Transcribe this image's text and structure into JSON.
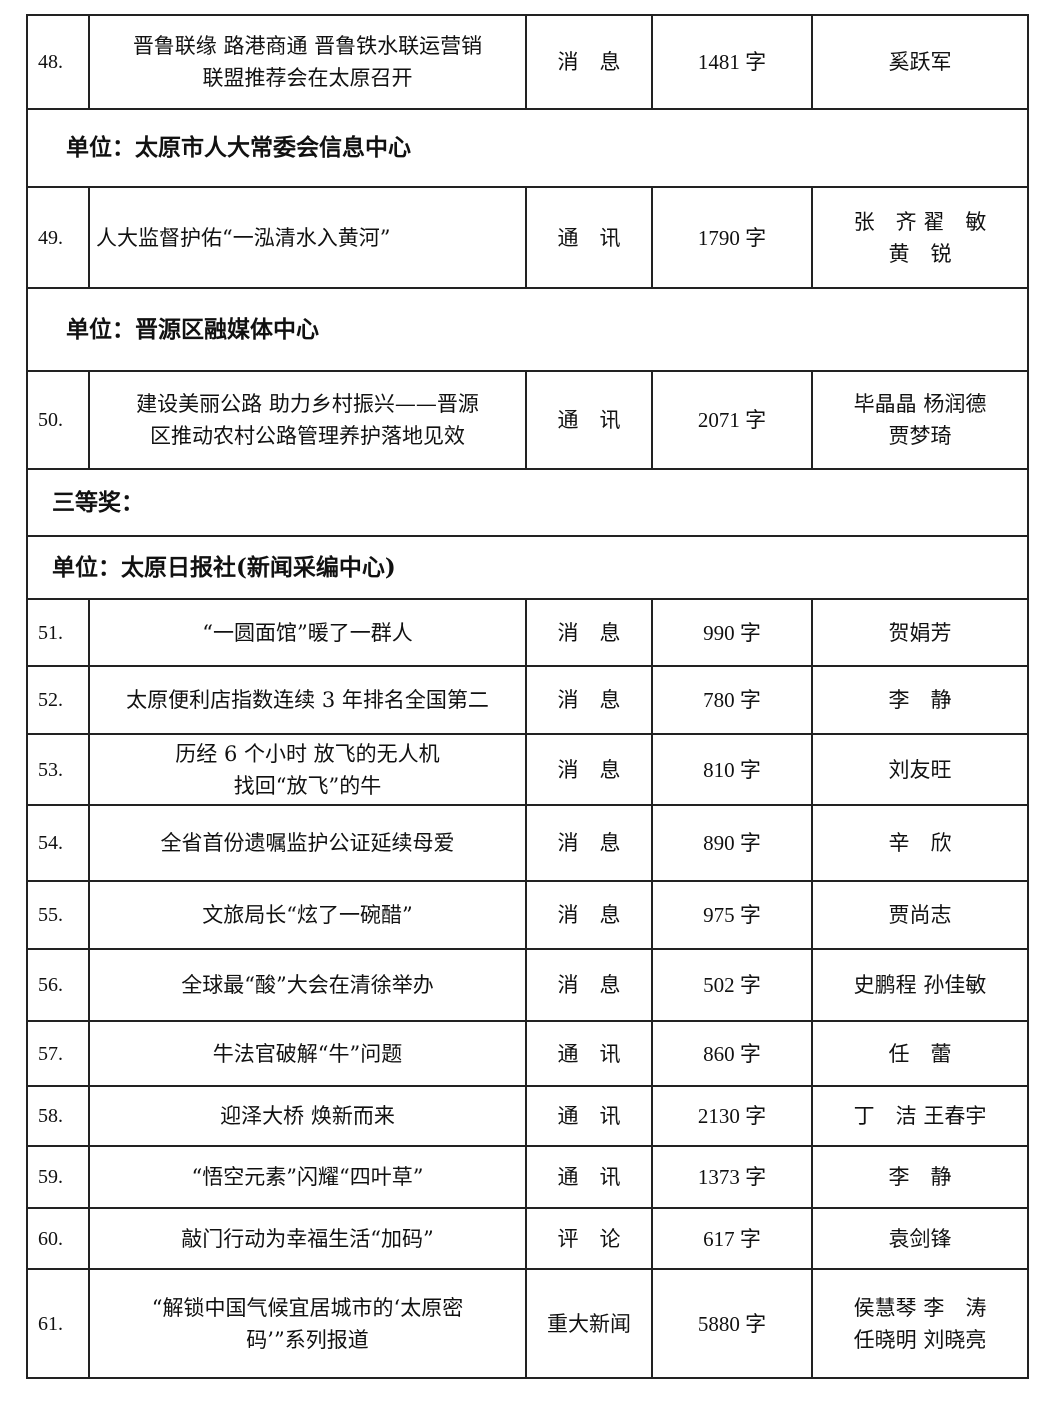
{
  "table": {
    "rows": [
      {
        "type": "entry",
        "no": "48.",
        "title": [
          "晋鲁联缘 路港商通 晋鲁铁水联运营销",
          "联盟推荐会在太原召开"
        ],
        "category": "消　息",
        "words": "1481 字",
        "authors": [
          "奚跃军"
        ]
      },
      {
        "type": "section",
        "text": "单位：太原市人大常委会信息中心"
      },
      {
        "type": "entry",
        "no": "49.",
        "title": [
          "人大监督护佑“一泓清水入黄河”"
        ],
        "category": "通　讯",
        "words": "1790 字",
        "authors": [
          "张　齐 翟　敏",
          "黄　锐"
        ],
        "align": "left"
      },
      {
        "type": "section",
        "text": "单位：晋源区融媒体中心"
      },
      {
        "type": "entry",
        "no": "50.",
        "title": [
          "建设美丽公路 助力乡村振兴——晋源",
          "区推动农村公路管理养护落地见效"
        ],
        "category": "通　讯",
        "words": "2071 字",
        "authors": [
          "毕晶晶 杨润德",
          "贾梦琦"
        ]
      },
      {
        "type": "heading",
        "text": "三等奖："
      },
      {
        "type": "heading",
        "text": "单位：太原日报社(新闻采编中心)"
      },
      {
        "type": "entry",
        "no": "51.",
        "title": [
          "“一圆面馆”暖了一群人"
        ],
        "category": "消　息",
        "words": "990 字",
        "authors": [
          "贺娟芳"
        ]
      },
      {
        "type": "entry",
        "no": "52.",
        "title": [
          "太原便利店指数连续 3 年排名全国第二"
        ],
        "category": "消　息",
        "words": "780 字",
        "authors": [
          "李　静"
        ]
      },
      {
        "type": "entry",
        "no": "53.",
        "title": [
          "历经 6 个小时 放飞的无人机",
          "找回“放飞”的牛"
        ],
        "category": "消　息",
        "words": "810 字",
        "authors": [
          "刘友旺"
        ]
      },
      {
        "type": "entry",
        "no": "54.",
        "title": [
          "全省首份遗嘱监护公证延续母爱"
        ],
        "category": "消　息",
        "words": "890 字",
        "authors": [
          "辛　欣"
        ]
      },
      {
        "type": "entry",
        "no": "55.",
        "title": [
          "文旅局长“炫了一碗醋”"
        ],
        "category": "消　息",
        "words": "975 字",
        "authors": [
          "贾尚志"
        ]
      },
      {
        "type": "entry",
        "no": "56.",
        "title": [
          "全球最“酸”大会在清徐举办"
        ],
        "category": "消　息",
        "words": "502 字",
        "authors": [
          "史鹏程 孙佳敏"
        ]
      },
      {
        "type": "entry",
        "no": "57.",
        "title": [
          "牛法官破解“牛”问题"
        ],
        "category": "通　讯",
        "words": "860 字",
        "authors": [
          "任　蕾"
        ]
      },
      {
        "type": "entry",
        "no": "58.",
        "title": [
          "迎泽大桥 焕新而来"
        ],
        "category": "通　讯",
        "words": "2130 字",
        "authors": [
          "丁　洁 王春宇"
        ]
      },
      {
        "type": "entry",
        "no": "59.",
        "title": [
          "“悟空元素”闪耀“四叶草”"
        ],
        "category": "通　讯",
        "words": "1373 字",
        "authors": [
          "李　静"
        ]
      },
      {
        "type": "entry",
        "no": "60.",
        "title": [
          "敲门行动为幸福生活“加码”"
        ],
        "category": "评　论",
        "words": "617 字",
        "authors": [
          "袁剑锋"
        ]
      },
      {
        "type": "entry",
        "no": "61.",
        "title": [
          "“解锁中国气候宜居城市的‘太原密",
          "码’”系列报道"
        ],
        "category": "重大新闻",
        "words": "5880 字",
        "authors": [
          "侯慧琴 李　涛",
          "任晓明 刘晓亮"
        ]
      }
    ]
  }
}
